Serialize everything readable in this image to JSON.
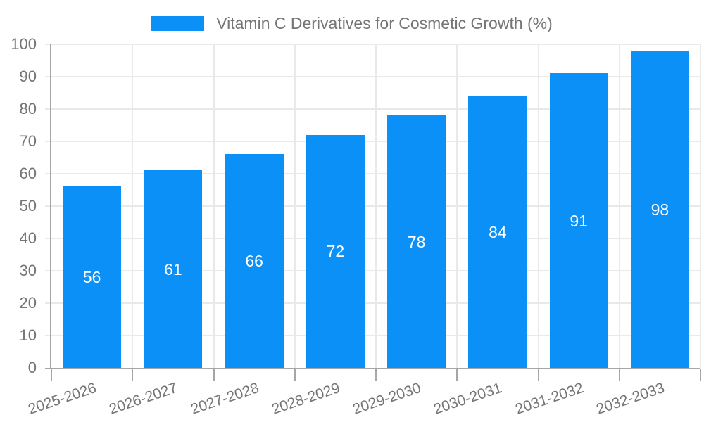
{
  "chart_data": {
    "type": "bar",
    "title": "Vitamin C Derivatives for Cosmetic Growth (%)",
    "categories": [
      "2025-2026",
      "2026-2027",
      "2027-2028",
      "2028-2029",
      "2029-2030",
      "2030-2031",
      "2031-2032",
      "2032-2033"
    ],
    "values": [
      56,
      61,
      66,
      72,
      78,
      84,
      91,
      98
    ],
    "xlabel": "",
    "ylabel": "",
    "ylim": [
      0,
      100
    ],
    "y_ticks": [
      0,
      10,
      20,
      30,
      40,
      50,
      60,
      70,
      80,
      90,
      100
    ],
    "grid": true,
    "legend_position": "top",
    "bar_color": "#0b90f8",
    "value_label_color": "#ffffff",
    "axis_text_color": "#757575",
    "grid_color": "#e9e9e9",
    "axis_line_color": "#a6a6a6"
  }
}
